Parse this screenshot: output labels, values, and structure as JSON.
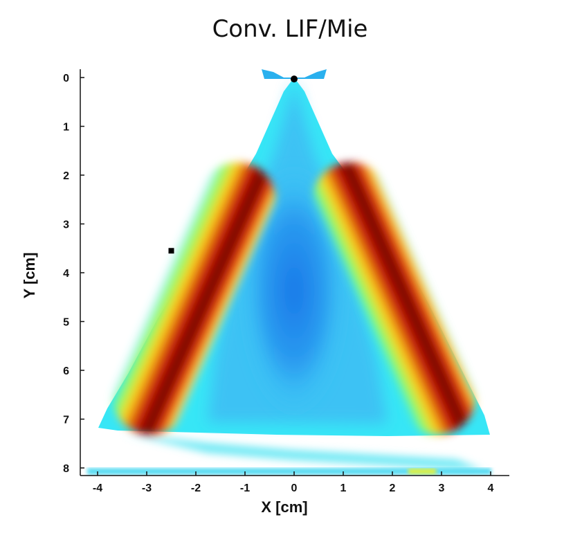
{
  "chart_data": {
    "type": "heatmap",
    "title": "Conv. LIF/Mie",
    "xlabel": "X [cm]",
    "ylabel": "Y [cm]",
    "xlim": [
      -4.7,
      4.4
    ],
    "ylim": [
      0,
      8.2
    ],
    "y_inverted": true,
    "x_ticks": [
      -4,
      -3,
      -2,
      -1,
      0,
      1,
      2,
      3,
      4
    ],
    "y_ticks": [
      0,
      1,
      2,
      3,
      4,
      5,
      6,
      7,
      8
    ],
    "colormap": "jet",
    "grid": false,
    "markers": [
      {
        "x": 0.0,
        "y": 0.03
      },
      {
        "x": -2.5,
        "y": 3.55
      }
    ]
  }
}
